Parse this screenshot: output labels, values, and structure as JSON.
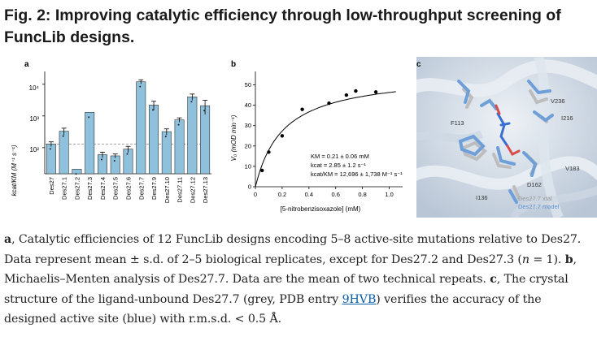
{
  "title": "Fig. 2: Improving catalytic efficiency through low-throughput screening of FuncLib designs.",
  "panel_labels": {
    "a": "a",
    "b": "b",
    "c": "c"
  },
  "panel_a": {
    "ylabel": "kcat/KM (M⁻¹ s⁻¹)",
    "yticks": [
      "10⁴",
      "10³",
      "10²"
    ],
    "bar_color": "#8fc1dc"
  },
  "panel_b": {
    "ylabel": "V₀ (mOD min⁻¹)",
    "xlabel": "[5-nitrobenzisoxazole] (mM)",
    "annotations": [
      "KM = 0.21 ± 0.06 mM",
      "kcat = 2.85 ± 1.2 s⁻¹",
      "kcat/KM = 12,696 ± 1,738 M⁻¹ s⁻¹"
    ]
  },
  "panel_c": {
    "residue_labels": [
      "V236",
      "I216",
      "F113",
      "V183",
      "D162",
      "I136"
    ],
    "legend": [
      "Des27.7 xtal",
      "Des27.7 model"
    ],
    "colors": {
      "xtal": "#b8b8b8",
      "model": "#6f9fd8"
    }
  },
  "chart_data": [
    {
      "type": "bar",
      "panel": "a",
      "categories": [
        "Des27",
        "Des27.1",
        "Des27.2",
        "Des27.3",
        "Des27.4",
        "Des27.5",
        "Des27.6",
        "Des27.7",
        "Des27.9",
        "Des27.10",
        "Des27.11",
        "Des27.12",
        "Des27.13"
      ],
      "values": [
        130,
        330,
        21,
        1300,
        60,
        55,
        90,
        12000,
        2200,
        320,
        750,
        4000,
        2100
      ],
      "errors": [
        22,
        80,
        0,
        0,
        12,
        8,
        20,
        1800,
        700,
        70,
        120,
        900,
        1000
      ],
      "yscale": "log",
      "ylim": [
        15,
        20000
      ],
      "reference_line": 130,
      "ylabel": "kcat/KM (M⁻¹ s⁻¹)"
    },
    {
      "type": "scatter",
      "panel": "b",
      "x": [
        0.05,
        0.1,
        0.2,
        0.35,
        0.55,
        0.68,
        0.75,
        0.9
      ],
      "y": [
        8,
        17,
        25,
        38,
        41,
        45,
        47,
        46.5
      ],
      "fit": {
        "model": "michaelis-menten",
        "vmax": 56,
        "km": 0.21
      },
      "xlim": [
        0,
        1.1
      ],
      "ylim": [
        0,
        55
      ],
      "xticks": [
        "0",
        "0.2",
        "0.4",
        "0.6",
        "0.8",
        "1.0"
      ],
      "yticks": [
        "0",
        "10",
        "20",
        "30",
        "40",
        "50"
      ],
      "xlabel": "[5-nitrobenzisoxazole] (mM)",
      "ylabel": "V₀ (mOD min⁻¹)"
    }
  ],
  "caption": {
    "a_label": "a",
    "a_text": ", Catalytic efficiencies of 12 FuncLib designs encoding 5–8 active-site mutations relative to Des27. Data represent mean ± s.d. of 2–5 biological replicates, except for Des27.2 and Des27.3 (",
    "a_n": "n",
    "a_tail": " = 1). ",
    "b_label": "b",
    "b_text": ", Michaelis–Menten analysis of Des27.7. Data are the mean of two technical repeats. ",
    "c_label": "c",
    "c_text": ", The crystal structure of the ligand-unbound Des27.7 (grey, PDB entry ",
    "pdb_link": "9HVB",
    "c_tail": ") verifies the accuracy of the designed active site (blue) with r.m.s.d. < 0.5 Å."
  }
}
